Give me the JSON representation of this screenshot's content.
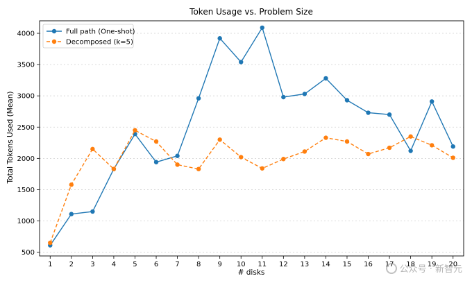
{
  "chart_data": {
    "type": "line",
    "title": "Token Usage vs. Problem Size",
    "xlabel": "# disks",
    "ylabel": "Total Tokens Used (Mean)",
    "x": [
      1,
      2,
      3,
      4,
      5,
      6,
      7,
      8,
      9,
      10,
      11,
      12,
      13,
      14,
      15,
      16,
      17,
      18,
      19,
      20
    ],
    "xlim": [
      0.5,
      20.5
    ],
    "ylim": [
      440,
      4200
    ],
    "yticks": [
      500,
      1000,
      1500,
      2000,
      2500,
      3000,
      3500,
      4000
    ],
    "grid": "horizontal-dotted",
    "legend_position": "top-left",
    "series": [
      {
        "name": "Full path (One-shot)",
        "color": "#1f77b4",
        "line_style": "solid",
        "values": [
          610,
          1110,
          1150,
          1830,
          2390,
          1940,
          2040,
          2960,
          3920,
          3540,
          4090,
          2980,
          3030,
          3280,
          2930,
          2730,
          2700,
          2120,
          2910,
          2190
        ]
      },
      {
        "name": "Decomposed (k=5)",
        "color": "#ff7f0e",
        "line_style": "dashed",
        "values": [
          650,
          1580,
          2150,
          1830,
          2450,
          2270,
          1900,
          1830,
          2300,
          2020,
          1840,
          1990,
          2110,
          2330,
          2270,
          2070,
          2170,
          2350,
          2210,
          2010
        ]
      }
    ]
  },
  "watermark": {
    "text": "公众号 · 新智元"
  }
}
